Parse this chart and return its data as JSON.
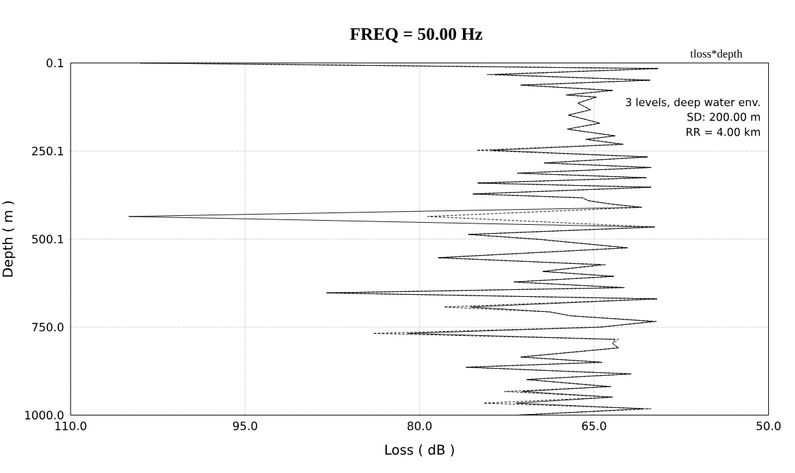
{
  "chart_data": {
    "type": "line",
    "title": "FREQ =    50.00 Hz",
    "xlabel": "Loss ( dB )",
    "ylabel": "Depth ( m )",
    "annotations": [
      "tloss*depth",
      "3 levels, deep water env.",
      "SD:      200.00    m",
      "RR =       4.00    km"
    ],
    "xlim": [
      110,
      50
    ],
    "ylim": [
      1000,
      0.1
    ],
    "xticks": [
      {
        "value": 110,
        "label": "110.0"
      },
      {
        "value": 95,
        "label": "95.0"
      },
      {
        "value": 80,
        "label": "80.0"
      },
      {
        "value": 65,
        "label": "65.0"
      },
      {
        "value": 50,
        "label": "50.0"
      }
    ],
    "yticks": [
      {
        "value": 0.1,
        "label": "0.1"
      },
      {
        "value": 250.1,
        "label": "250.1"
      },
      {
        "value": 500.1,
        "label": "500.1"
      },
      {
        "value": 750,
        "label": "750.0"
      },
      {
        "value": 1000,
        "label": "1000.0"
      }
    ],
    "grid": true,
    "marker": "none",
    "series": [
      {
        "color": "#000000",
        "line_style": "solid",
        "x": [
          104,
          59.5,
          73.5,
          60.2,
          71.3,
          63.4,
          67.4,
          64.8,
          66.4,
          65.3,
          67.2,
          64.5,
          67.3,
          63.2,
          65.7,
          62.5,
          73.8,
          60.4,
          69.3,
          60.1,
          71.6,
          60.5,
          75.0,
          60.1,
          75.4,
          66.0,
          65.5,
          63.5,
          60.9,
          105,
          59.8,
          75.8,
          69.7,
          62.1,
          78.4,
          64.4,
          69.4,
          63.3,
          71.9,
          62.4,
          88.0,
          59.6,
          75.6,
          68.8,
          67.0,
          59.9,
          64.4,
          81.0,
          63.2,
          63.4,
          62.9,
          71.3,
          64.3,
          76.0,
          61.8,
          70.8,
          63.8,
          71.2,
          63.4,
          71.7,
          60.8,
          71.6
        ],
        "values": [
          0.1,
          16,
          33,
          49,
          63,
          78,
          91,
          97,
          114,
          133,
          148,
          171,
          188,
          207,
          217,
          231,
          248,
          267,
          284,
          297,
          313,
          326,
          341,
          353,
          372,
          383,
          391,
          401,
          410,
          436,
          466,
          487,
          501,
          525,
          553,
          573,
          592,
          606,
          622,
          638,
          653,
          670,
          693,
          707,
          718,
          734,
          750,
          768,
          785,
          797,
          809,
          835,
          850,
          864,
          883,
          899,
          919,
          933,
          949,
          966,
          982,
          1000
        ]
      },
      {
        "color": "#000000",
        "line_style": "dashed",
        "x": [
          104,
          59.5,
          74.2,
          60.2,
          71.3,
          63.4,
          67.4,
          64.8,
          66.4,
          65.3,
          67.2,
          64.5,
          67.3,
          63.2,
          65.7,
          62.5,
          75.1,
          60.4,
          69.3,
          60.1,
          71.6,
          60.5,
          75.0,
          60.1,
          75.4,
          66.0,
          65.5,
          63.5,
          60.9,
          79.3,
          59.8,
          75.8,
          69.7,
          62.1,
          78.4,
          64.0,
          69.4,
          63.3,
          71.9,
          62.4,
          88.0,
          59.6,
          77.9,
          68.8,
          67.0,
          59.6,
          64.4,
          84.0,
          62.9,
          63.4,
          62.9,
          71.3,
          64.3,
          76.0,
          61.8,
          70.8,
          63.5,
          72.7,
          63.4,
          74.5,
          60.1,
          71.6
        ],
        "values": [
          0.1,
          16,
          33,
          49,
          63,
          78,
          91,
          97,
          114,
          133,
          148,
          171,
          188,
          207,
          217,
          231,
          248,
          267,
          284,
          297,
          313,
          326,
          341,
          353,
          372,
          383,
          391,
          401,
          410,
          436,
          466,
          487,
          501,
          525,
          553,
          573,
          592,
          606,
          622,
          638,
          653,
          670,
          693,
          707,
          718,
          734,
          750,
          768,
          785,
          797,
          809,
          835,
          850,
          864,
          883,
          899,
          919,
          933,
          949,
          966,
          982,
          1000
        ]
      }
    ]
  }
}
